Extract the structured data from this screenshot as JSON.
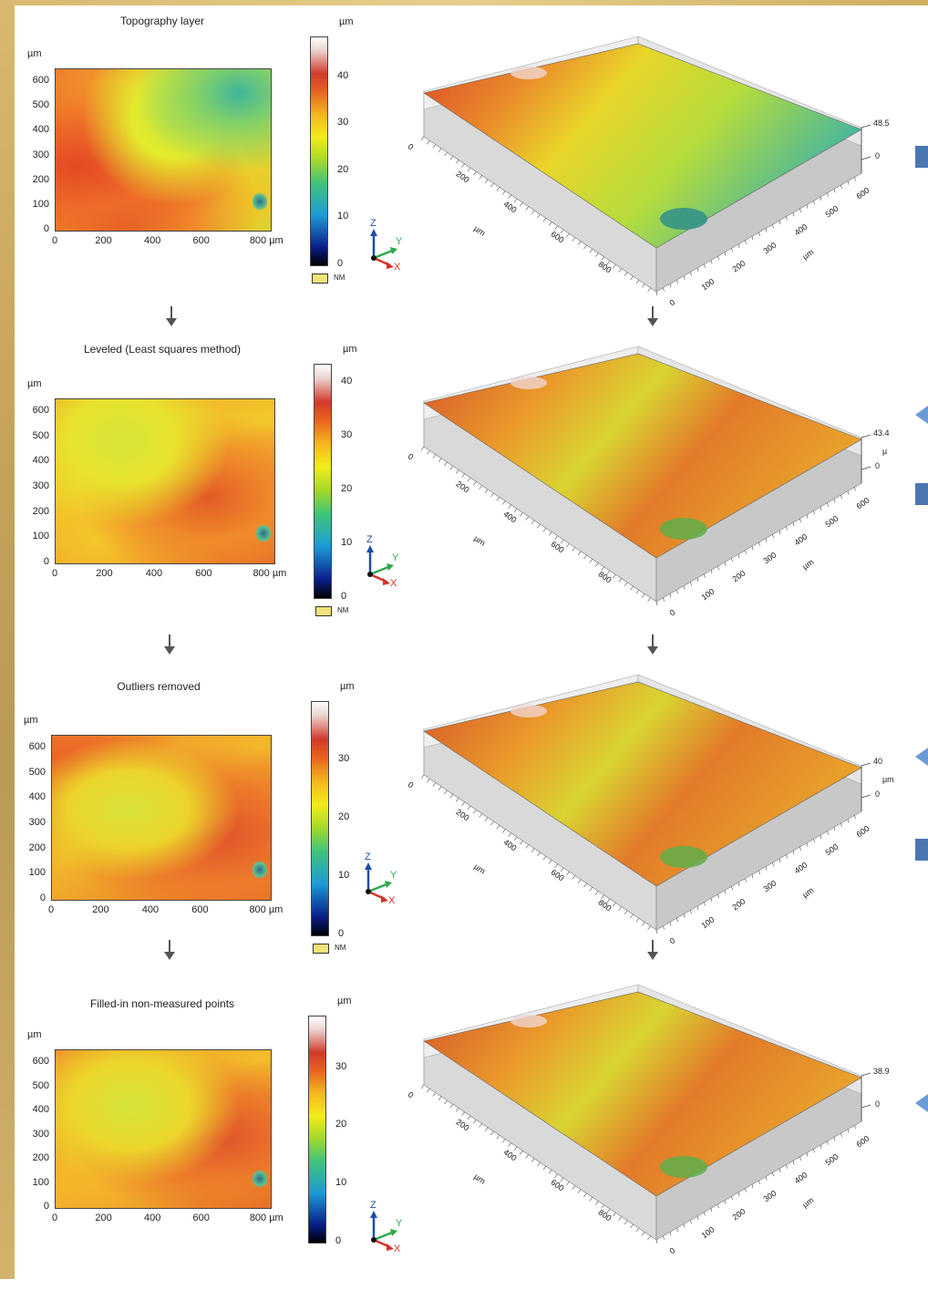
{
  "colors": {
    "bar": "#4b76b0",
    "triangle": "#6c9ad6"
  },
  "unit": "µm",
  "nm_label": "NM",
  "axis_letters": {
    "z": "Z",
    "y": "Y",
    "x": "X"
  },
  "x_ticks": [
    "0",
    "200",
    "400",
    "600",
    "800 µm"
  ],
  "y_ticks": [
    "600",
    "500",
    "400",
    "300",
    "200",
    "100",
    "0"
  ],
  "axis_3d": {
    "x_ticks": [
      "0",
      "200",
      "400",
      "600",
      "800"
    ],
    "y_ticks": [
      "0",
      "100",
      "200",
      "300",
      "400",
      "500",
      "600"
    ],
    "unit": "µm"
  },
  "panels": [
    {
      "title": "Topography layer",
      "cbar_unit": "µm",
      "cbar_ticks": [
        "40",
        "30",
        "20",
        "10",
        "0"
      ],
      "z_max": "48.5",
      "z_min": "0",
      "z_unit": "",
      "has_nm": true,
      "variant": "raw"
    },
    {
      "title": "Leveled (Least squares method)",
      "cbar_unit": "µm",
      "cbar_ticks": [
        "40",
        "30",
        "20",
        "10",
        "0"
      ],
      "z_max": "43.4",
      "z_min": "0",
      "z_unit": "µ",
      "has_nm": true,
      "variant": "leveled"
    },
    {
      "title": "Outliers removed",
      "cbar_unit": "µm",
      "cbar_ticks": [
        "30",
        "20",
        "10",
        "0"
      ],
      "z_max": "40",
      "z_min": "0",
      "z_unit": "µm",
      "has_nm": true,
      "variant": "outliers"
    },
    {
      "title": "Filled-in non-measured points",
      "cbar_unit": "µm",
      "cbar_ticks": [
        "30",
        "20",
        "10",
        "0"
      ],
      "z_max": "38.9",
      "z_min": "0",
      "z_unit": "",
      "has_nm": false,
      "variant": "filled"
    }
  ]
}
